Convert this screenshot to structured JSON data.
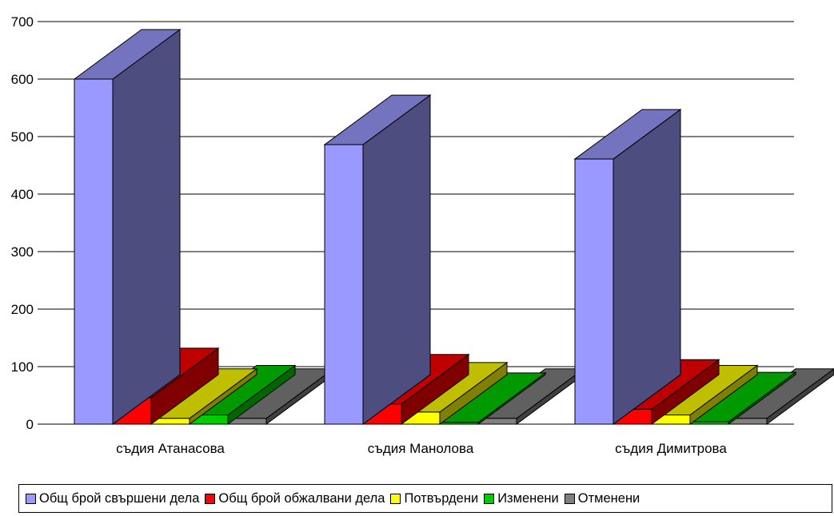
{
  "chart_data": {
    "type": "bar",
    "categories": [
      "съдия Атанасова",
      "съдия Манолова",
      "съдия Димитрова"
    ],
    "series": [
      {
        "name": "Общ брой свършени дела",
        "color": "#9999ff",
        "values": [
          600,
          486,
          461
        ]
      },
      {
        "name": "Общ брой обжалвани дела",
        "color": "#ff0000",
        "values": [
          46,
          35,
          26
        ]
      },
      {
        "name": "Потвърдени",
        "color": "#ffff00",
        "values": [
          10,
          21,
          16
        ]
      },
      {
        "name": "Изменени",
        "color": "#00cc00",
        "values": [
          16,
          3,
          4
        ]
      },
      {
        "name": "Отменени",
        "color": "#808080",
        "values": [
          10,
          10,
          10
        ]
      }
    ],
    "ylim": [
      0,
      700
    ],
    "yticks": [
      "0",
      "100",
      "200",
      "300",
      "400",
      "500",
      "600",
      "700"
    ],
    "grid": true,
    "legend": "bottom"
  }
}
